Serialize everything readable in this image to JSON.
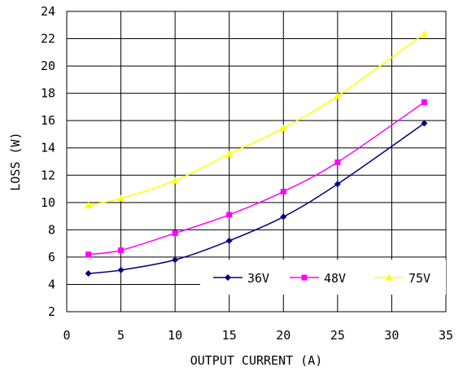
{
  "chart_data": {
    "type": "line",
    "title": "",
    "xlabel": "OUTPUT CURRENT (A)",
    "ylabel": "LOSS (W)",
    "xlim": [
      0,
      35
    ],
    "ylim": [
      2,
      24
    ],
    "x_ticks": [
      0,
      5,
      10,
      15,
      20,
      25,
      30,
      35
    ],
    "y_ticks": [
      2,
      4,
      6,
      8,
      10,
      12,
      14,
      16,
      18,
      20,
      22,
      24
    ],
    "grid": true,
    "legend_position": "bottom-right",
    "series": [
      {
        "name": "36V",
        "color": "#000080",
        "marker": "diamond",
        "x": [
          2,
          5,
          10,
          15,
          20,
          25,
          33
        ],
        "y": [
          4.8,
          5.05,
          5.8,
          7.2,
          8.95,
          11.35,
          15.8
        ]
      },
      {
        "name": "48V",
        "color": "#ff00ff",
        "marker": "square",
        "x": [
          2,
          5,
          10,
          15,
          20,
          25,
          33
        ],
        "y": [
          6.2,
          6.5,
          7.75,
          9.1,
          10.8,
          12.95,
          17.35
        ]
      },
      {
        "name": "75V",
        "color": "#ffff00",
        "marker": "triangle",
        "x": [
          2,
          5,
          10,
          15,
          20,
          25,
          33
        ],
        "y": [
          9.8,
          10.3,
          11.6,
          13.55,
          15.45,
          17.8,
          22.35
        ]
      }
    ]
  }
}
